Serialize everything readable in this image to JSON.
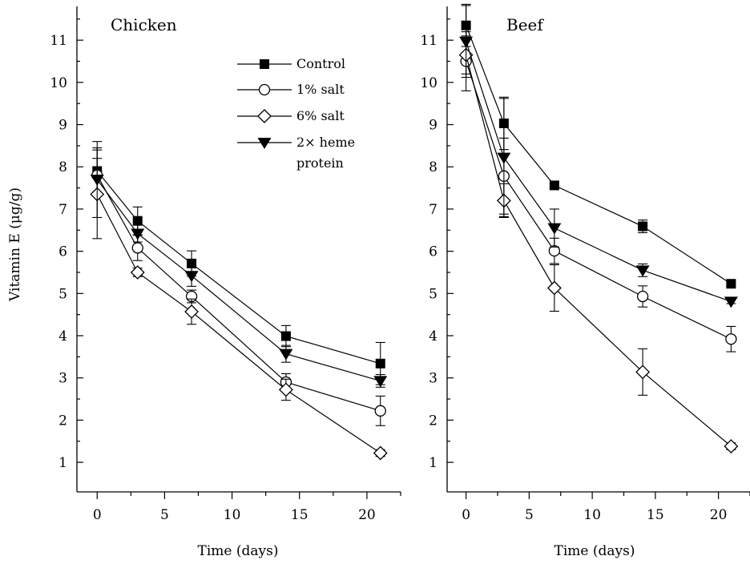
{
  "ylabel": "Vitamin E (μg/g)",
  "chart_data": [
    {
      "type": "line",
      "title": "Chicken",
      "xlabel": "Time (days)",
      "ylabel": "Vitamin E (μg/g)",
      "xlim": [
        -1.5,
        22.5
      ],
      "ylim": [
        0.3,
        11.8
      ],
      "xticks": [
        0,
        5,
        10,
        15,
        20
      ],
      "yticks": [
        1,
        2,
        3,
        4,
        5,
        6,
        7,
        8,
        9,
        10,
        11
      ],
      "x": [
        0,
        3,
        7,
        14,
        21
      ],
      "legend": "top-right",
      "series": [
        {
          "name": "Control",
          "marker": "square-filled",
          "values": [
            7.9,
            6.72,
            5.71,
            3.99,
            3.34
          ],
          "errors": [
            0.55,
            0.33,
            0.3,
            0.25,
            0.5
          ]
        },
        {
          "name": "1% salt",
          "marker": "circle-open",
          "values": [
            7.8,
            6.08,
            4.93,
            2.9,
            2.22
          ],
          "errors": [
            0.4,
            0.3,
            0.15,
            0.2,
            0.35
          ]
        },
        {
          "name": "6% salt",
          "marker": "diamond-open",
          "values": [
            7.35,
            5.5,
            4.57,
            2.72,
            1.22
          ],
          "errors": [
            1.05,
            0.1,
            0.3,
            0.25,
            0.08
          ]
        },
        {
          "name": "2× heme protein",
          "marker": "triangle-down-filled",
          "values": [
            7.7,
            6.42,
            5.42,
            3.57,
            2.93
          ],
          "errors": [
            0.9,
            0.2,
            0.25,
            0.2,
            0.15
          ]
        }
      ]
    },
    {
      "type": "line",
      "title": "Beef",
      "xlabel": "Time (days)",
      "ylabel": "",
      "xlim": [
        -1.5,
        22.5
      ],
      "ylim": [
        0.3,
        11.8
      ],
      "xticks": [
        0,
        5,
        10,
        15,
        20
      ],
      "yticks": [
        1,
        2,
        3,
        4,
        5,
        6,
        7,
        8,
        9,
        10,
        11
      ],
      "x": [
        0,
        3,
        7,
        14,
        21
      ],
      "series": [
        {
          "name": "Control",
          "marker": "square-filled",
          "values": [
            11.35,
            9.03,
            7.56,
            6.59,
            5.23
          ],
          "errors": [
            0.5,
            0.62,
            0.06,
            0.15,
            0.05
          ]
        },
        {
          "name": "1% salt",
          "marker": "circle-open",
          "values": [
            10.5,
            7.78,
            6.01,
            4.93,
            3.92
          ],
          "errors": [
            0.7,
            0.9,
            0.3,
            0.25,
            0.3
          ]
        },
        {
          "name": "6% salt",
          "marker": "diamond-open",
          "values": [
            10.65,
            7.2,
            5.13,
            3.14,
            1.38
          ],
          "errors": [
            0.45,
            0.4,
            0.55,
            0.55,
            0.08
          ]
        },
        {
          "name": "2× heme protein",
          "marker": "triangle-down-filled",
          "values": [
            10.97,
            8.22,
            6.55,
            5.55,
            4.81
          ],
          "errors": [
            0.85,
            1.4,
            0.45,
            0.15,
            0.05
          ]
        }
      ]
    }
  ]
}
